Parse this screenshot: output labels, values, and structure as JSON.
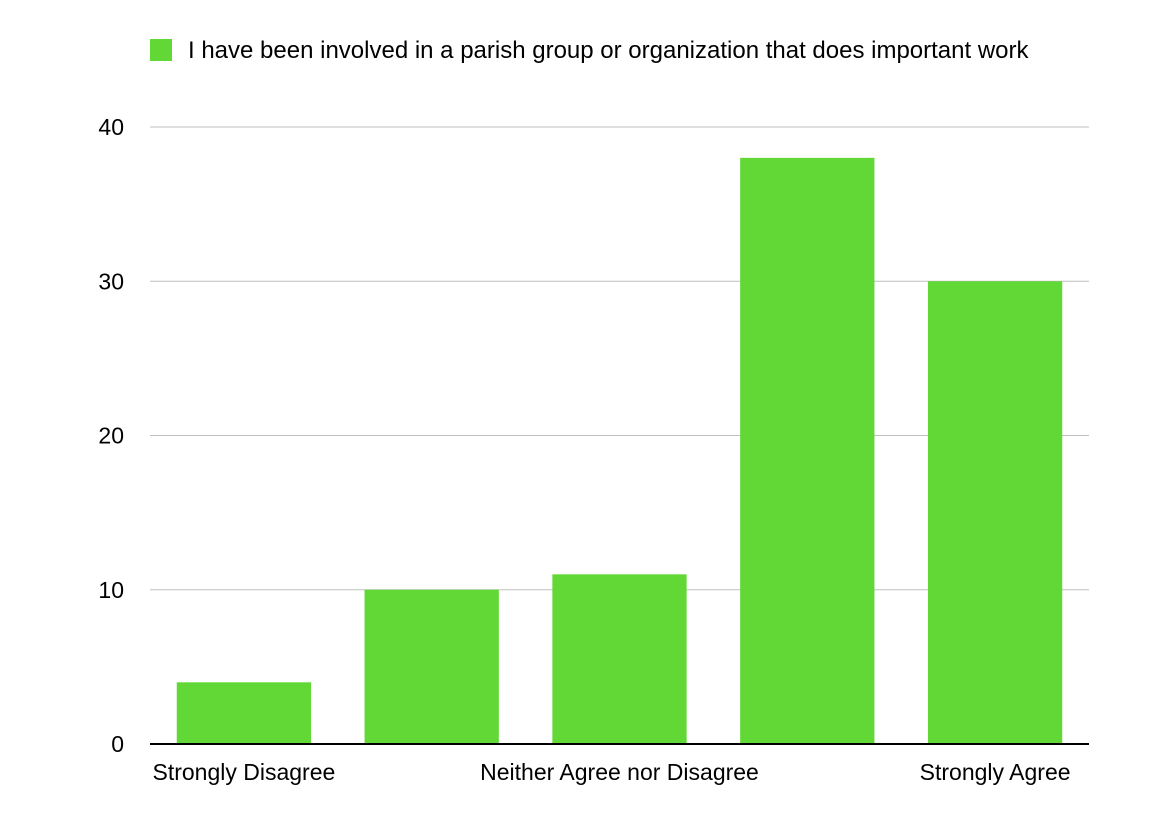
{
  "chart_data": {
    "type": "bar",
    "categories": [
      "Strongly Disagree",
      "",
      "Neither Agree nor Disagree",
      "",
      "Strongly Agree"
    ],
    "series": [
      {
        "name": "I have been involved in a parish group or organization that does important work",
        "values": [
          4,
          10,
          11,
          38,
          30
        ],
        "color": "#61d836"
      }
    ],
    "ylim": [
      0,
      40
    ],
    "yticks": [
      0,
      10,
      20,
      30,
      40
    ],
    "grid": true,
    "legend": "top",
    "colors": {
      "bar": "#61d836",
      "grid": "#c0c0c0",
      "axis": "#000000"
    }
  }
}
